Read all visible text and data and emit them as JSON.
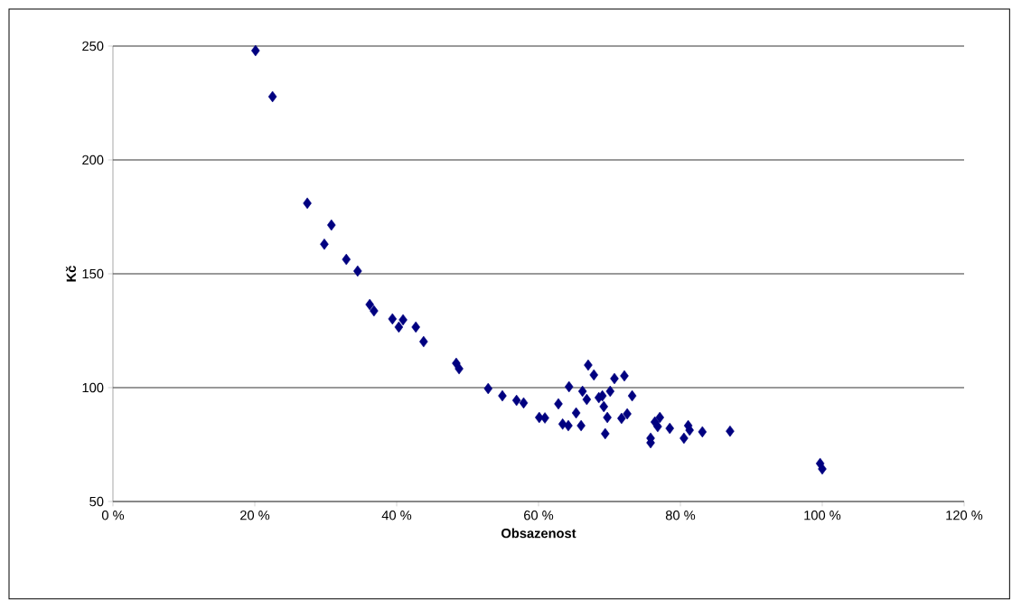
{
  "chart_data": {
    "type": "scatter",
    "xlabel": "Obsazenost",
    "ylabel": "Kč",
    "x": [
      20.1,
      22.5,
      27.4,
      29.8,
      30.8,
      32.9,
      34.5,
      36.2,
      36.8,
      39.4,
      40.3,
      40.9,
      42.7,
      43.8,
      48.4,
      48.8,
      52.9,
      54.9,
      56.9,
      57.9,
      60.1,
      60.9,
      62.8,
      63.4,
      64.3,
      64.2,
      65.3,
      66.0,
      66.2,
      66.8,
      67.0,
      67.8,
      68.5,
      69.0,
      69.2,
      69.4,
      69.7,
      70.1,
      70.7,
      71.7,
      72.1,
      72.5,
      73.2,
      75.8,
      75.8,
      76.4,
      76.8,
      77.1,
      78.5,
      80.5,
      81.1,
      81.3,
      83.1,
      87.0,
      99.7,
      100.0
    ],
    "series": [
      {
        "color": "#000080",
        "values": [
          248,
          227.8,
          181,
          163,
          171.4,
          156.3,
          151.2,
          136.5,
          133.7,
          130.2,
          126.6,
          129.8,
          126.6,
          120.2,
          110.7,
          108.3,
          99.6,
          96.4,
          94.4,
          93.3,
          86.9,
          86.7,
          92.9,
          84,
          100.4,
          83.3,
          88.9,
          83.3,
          98.4,
          94.8,
          109.9,
          105.6,
          95.6,
          96.4,
          91.7,
          79.8,
          86.9,
          98.4,
          104.0,
          86.5,
          105.2,
          88.5,
          96.4,
          77.8,
          75.8,
          84.9,
          82.9,
          86.9,
          82.1,
          77.8,
          83.3,
          81.3,
          80.6,
          80.9,
          66.7,
          64.3
        ]
      }
    ],
    "xlim": [
      0,
      120
    ],
    "ylim": [
      50,
      250
    ],
    "xticks": [
      {
        "value": 0,
        "label": "0 %"
      },
      {
        "value": 20,
        "label": "20 %"
      },
      {
        "value": 40,
        "label": "40 %"
      },
      {
        "value": 60,
        "label": "60 %"
      },
      {
        "value": 80,
        "label": "80 %"
      },
      {
        "value": 100,
        "label": "100 %"
      },
      {
        "value": 120,
        "label": "120 %"
      }
    ],
    "yticks": [
      50,
      100,
      150,
      200,
      250
    ],
    "grid": "y",
    "marker": "diamond"
  }
}
